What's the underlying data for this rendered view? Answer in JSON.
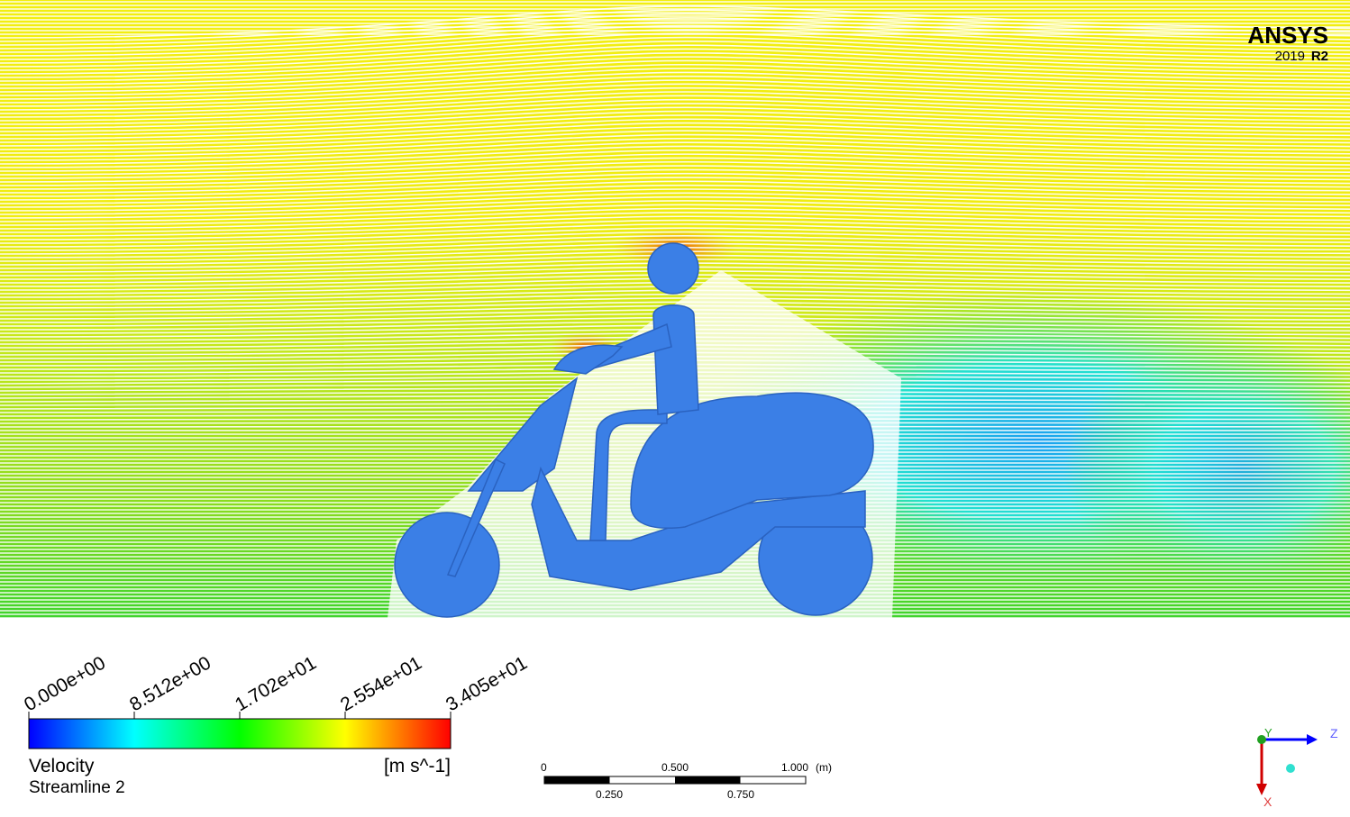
{
  "logo": {
    "brand": "ANSYS",
    "version": "2019",
    "release": "R2"
  },
  "legend": {
    "tick_labels": [
      "0.000e+00",
      "8.512e+00",
      "1.702e+01",
      "2.554e+01",
      "3.405e+01"
    ],
    "variable": "Velocity",
    "units": "[m s^-1]",
    "object": "Streamline 2"
  },
  "scale_bar": {
    "top_labels": [
      "0",
      "0.500",
      "1.000"
    ],
    "unit": "(m)",
    "bottom_labels": [
      "0.250",
      "0.750"
    ]
  },
  "triad": {
    "y": "Y",
    "z": "Z",
    "x": "X"
  }
}
